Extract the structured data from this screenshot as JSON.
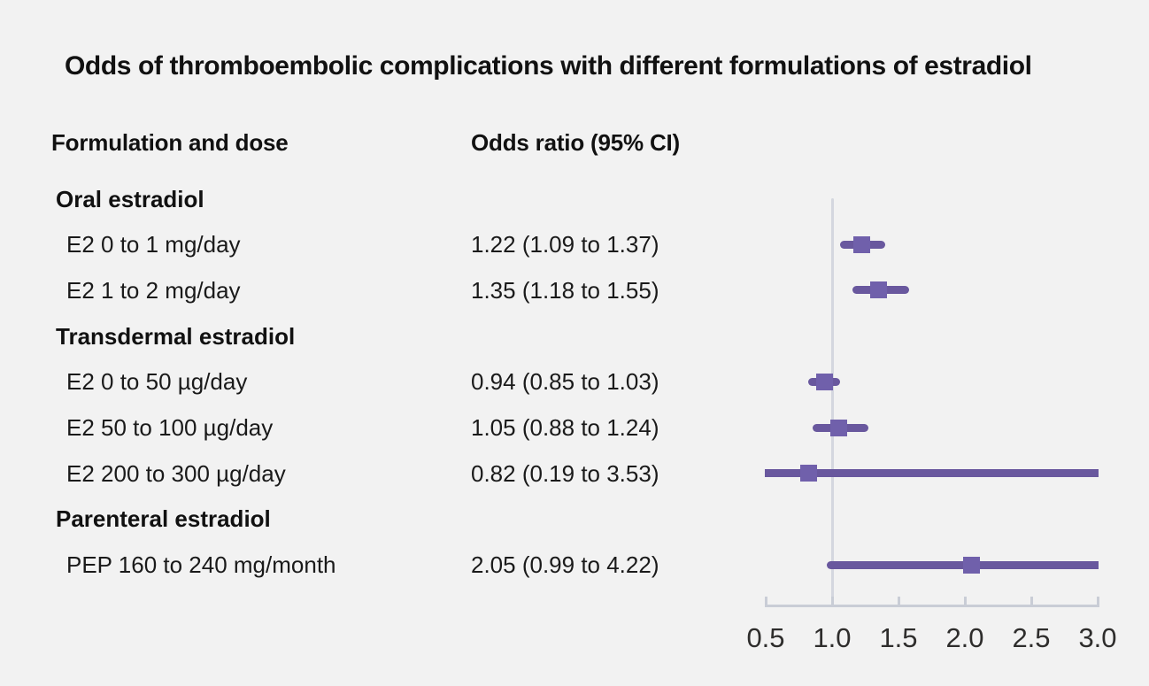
{
  "title": "Odds of thromboembolic complications with different formulations of estradiol",
  "columns": {
    "formulation": "Formulation and dose",
    "odds_ratio": "Odds ratio (95% CI)"
  },
  "chart_data": {
    "type": "forest",
    "title": "Odds of thromboembolic complications with different formulations of estradiol",
    "x_axis": {
      "ticks": [
        0.5,
        1.0,
        1.5,
        2.0,
        2.5,
        3.0
      ],
      "xlim": [
        0.5,
        3.0
      ],
      "reference_line": 1.0
    },
    "groups": [
      {
        "label": "Oral estradiol",
        "items": [
          {
            "label": "E2 0 to 1 mg/day",
            "or_text": "1.22 (1.09 to 1.37)",
            "or": 1.22,
            "ci_low": 1.09,
            "ci_high": 1.37
          },
          {
            "label": "E2 1 to 2 mg/day",
            "or_text": "1.35 (1.18 to 1.55)",
            "or": 1.35,
            "ci_low": 1.18,
            "ci_high": 1.55
          }
        ]
      },
      {
        "label": "Transdermal estradiol",
        "items": [
          {
            "label": "E2 0 to 50 µg/day",
            "or_text": "0.94 (0.85 to 1.03)",
            "or": 0.94,
            "ci_low": 0.85,
            "ci_high": 1.03
          },
          {
            "label": "E2 50 to 100 µg/day",
            "or_text": "1.05 (0.88 to 1.24)",
            "or": 1.05,
            "ci_low": 0.88,
            "ci_high": 1.24
          },
          {
            "label": "E2 200 to 300 µg/day",
            "or_text": "0.82 (0.19 to 3.53)",
            "or": 0.82,
            "ci_low": 0.19,
            "ci_high": 3.53
          }
        ]
      },
      {
        "label": "Parenteral estradiol",
        "items": [
          {
            "label": "PEP 160 to 240 mg/month",
            "or_text": "2.05 (0.99 to 4.22)",
            "or": 2.05,
            "ci_low": 0.99,
            "ci_high": 4.22
          }
        ]
      }
    ]
  },
  "colors": {
    "background": "#f2f2f2",
    "text": "#1a1a1a",
    "ci_line": "#69589e",
    "marker": "#7060ab",
    "reference_line": "#d4d7df",
    "axis": "#c9cdd6",
    "tick_text": "#2e2d2c"
  }
}
